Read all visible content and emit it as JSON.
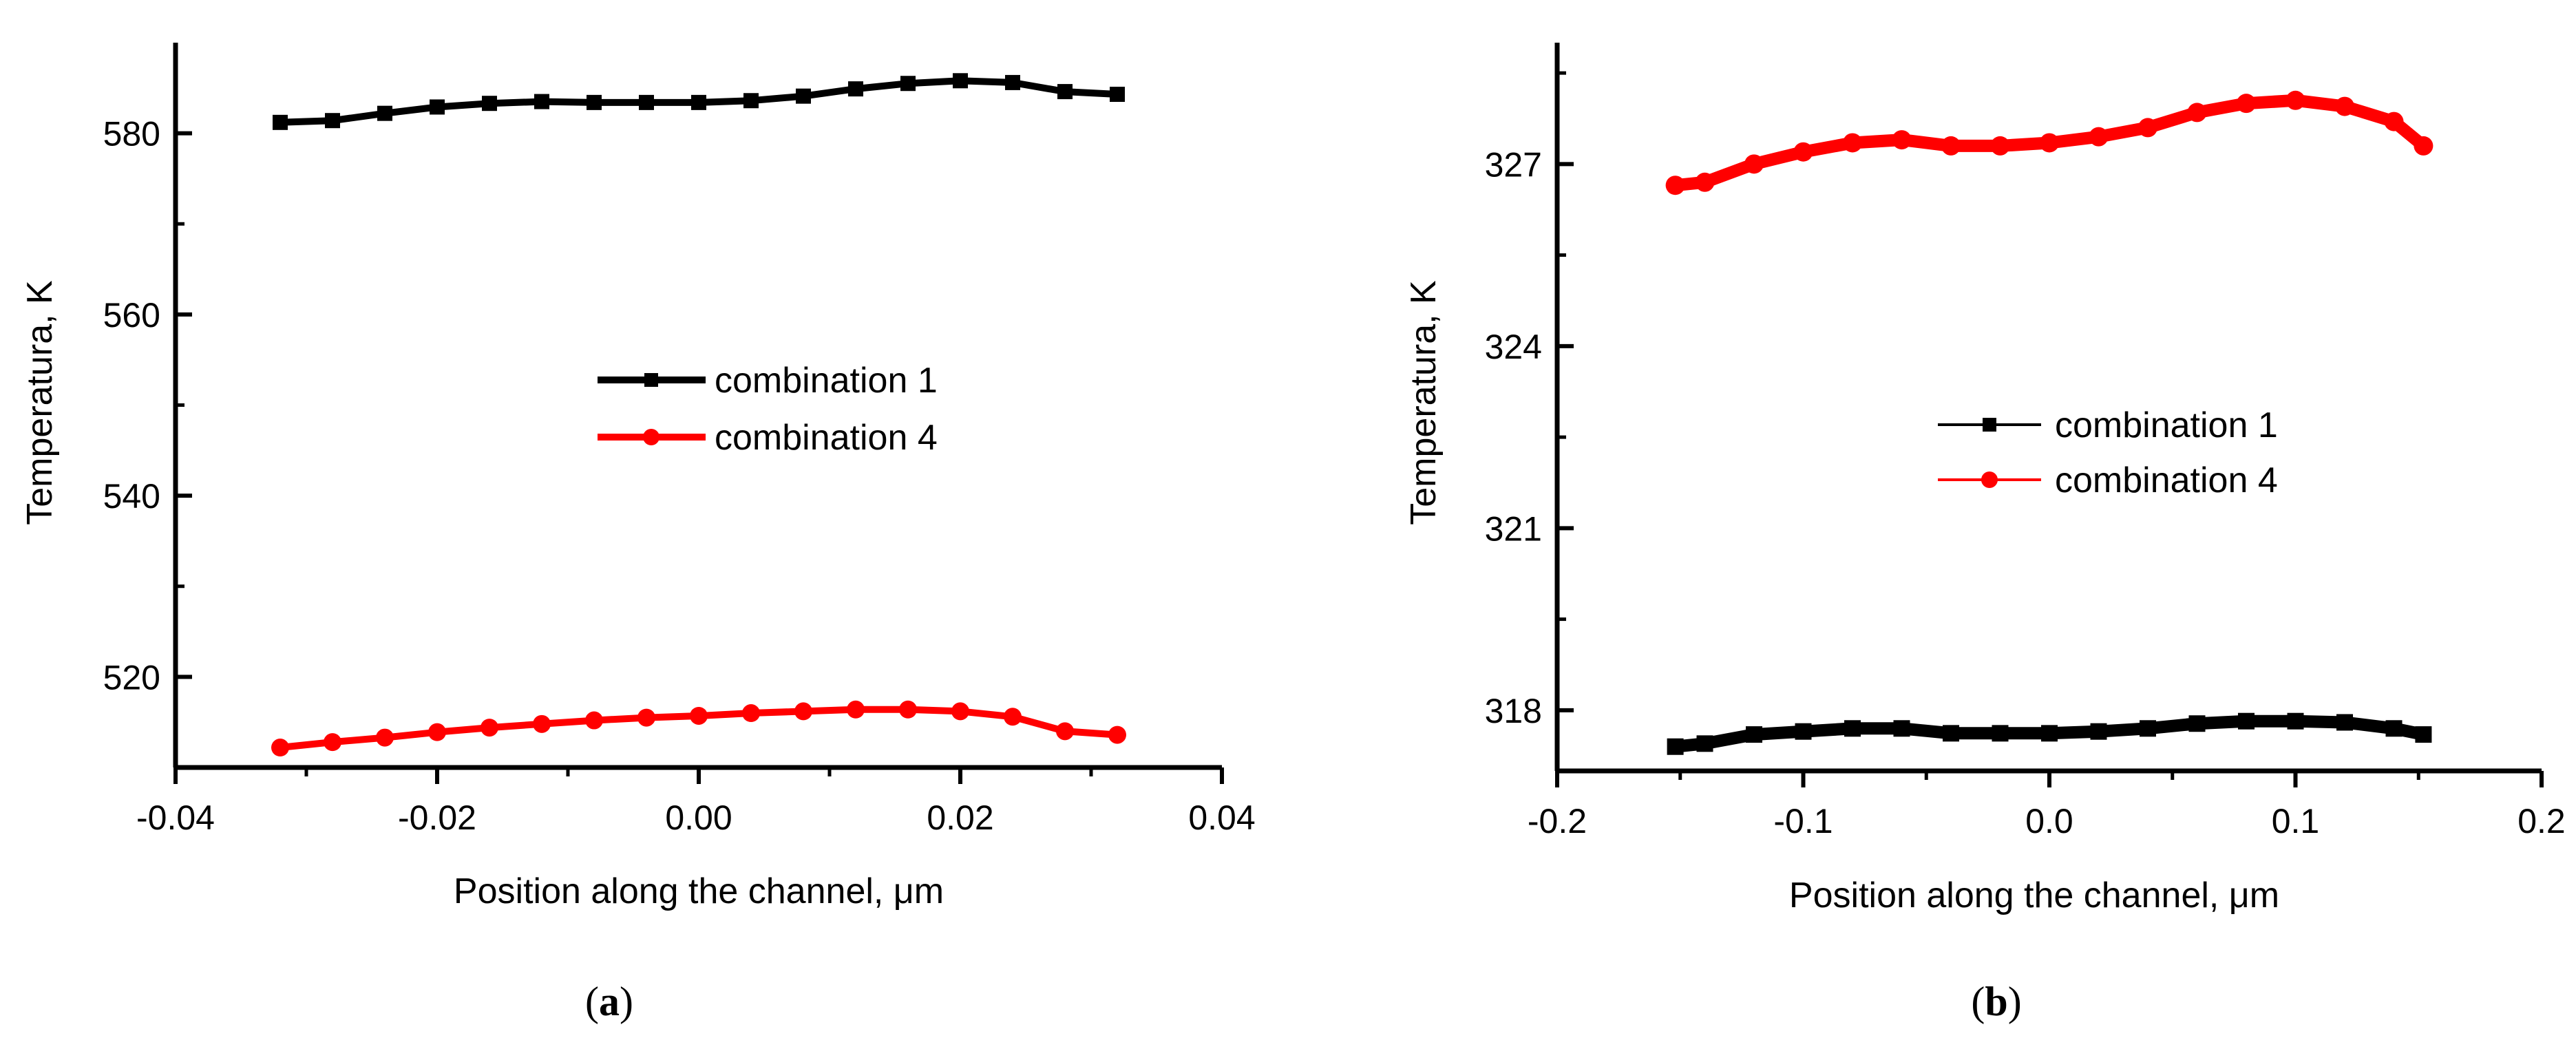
{
  "chart_data": [
    {
      "type": "line",
      "panel_label_open": "(",
      "panel_label_letter": "a",
      "panel_label_close": ")",
      "xlabel": "Position along the channel, μm",
      "ylabel": "Temperatura, K",
      "xlim": [
        -0.04,
        0.04
      ],
      "ylim": [
        510,
        590
      ],
      "xticks": [
        -0.04,
        -0.02,
        0.0,
        0.02,
        0.04
      ],
      "xtick_labels": [
        "-0.04",
        "-0.02",
        "0.00",
        "0.02",
        "0.04"
      ],
      "yticks": [
        520,
        540,
        560,
        580
      ],
      "ytick_labels": [
        "520",
        "540",
        "560",
        "580"
      ],
      "legend_position": "center",
      "series": [
        {
          "name": "combination 1",
          "color": "#000000",
          "marker": "square",
          "x": [
            -0.032,
            -0.028,
            -0.024,
            -0.02,
            -0.016,
            -0.012,
            -0.008,
            -0.004,
            0.0,
            0.004,
            0.008,
            0.012,
            0.016,
            0.02,
            0.024,
            0.028,
            0.032
          ],
          "y": [
            581.2,
            581.4,
            582.2,
            582.9,
            583.3,
            583.5,
            583.4,
            583.4,
            583.4,
            583.6,
            584.1,
            584.9,
            585.5,
            585.8,
            585.6,
            584.6,
            584.3
          ]
        },
        {
          "name": "combination 4",
          "color": "#ff0000",
          "marker": "circle",
          "x": [
            -0.032,
            -0.028,
            -0.024,
            -0.02,
            -0.016,
            -0.012,
            -0.008,
            -0.004,
            0.0,
            0.004,
            0.008,
            0.012,
            0.016,
            0.02,
            0.024,
            0.028,
            0.032
          ],
          "y": [
            512.2,
            512.8,
            513.3,
            513.9,
            514.4,
            514.8,
            515.2,
            515.5,
            515.7,
            516.0,
            516.2,
            516.4,
            516.4,
            516.2,
            515.6,
            514.0,
            513.6
          ]
        }
      ]
    },
    {
      "type": "line",
      "panel_label_open": "(",
      "panel_label_letter": "b",
      "panel_label_close": ")",
      "xlabel": "Position along the channel, μm",
      "ylabel": "Temperatura, K",
      "xlim": [
        -0.2,
        0.2
      ],
      "ylim": [
        317,
        329
      ],
      "xticks": [
        -0.2,
        -0.1,
        0.0,
        0.1,
        0.2
      ],
      "xtick_labels": [
        "-0.2",
        "-0.1",
        "0.0",
        "0.1",
        "0.2"
      ],
      "yticks": [
        318,
        321,
        324,
        327
      ],
      "ytick_labels": [
        "318",
        "321",
        "324",
        "327"
      ],
      "legend_position": "center",
      "series": [
        {
          "name": "combination 1",
          "color": "#000000",
          "marker": "square",
          "x": [
            -0.152,
            -0.14,
            -0.12,
            -0.1,
            -0.08,
            -0.06,
            -0.04,
            -0.02,
            0.0,
            0.02,
            0.04,
            0.06,
            0.08,
            0.1,
            0.12,
            0.14,
            0.152
          ],
          "y": [
            317.4,
            317.45,
            317.6,
            317.65,
            317.7,
            317.7,
            317.62,
            317.62,
            317.62,
            317.65,
            317.7,
            317.78,
            317.82,
            317.82,
            317.8,
            317.7,
            317.6
          ]
        },
        {
          "name": "combination 4",
          "color": "#ff0000",
          "marker": "circle",
          "x": [
            -0.152,
            -0.14,
            -0.12,
            -0.1,
            -0.08,
            -0.06,
            -0.04,
            -0.02,
            0.0,
            0.02,
            0.04,
            0.06,
            0.08,
            0.1,
            0.12,
            0.14,
            0.152
          ],
          "y": [
            326.65,
            326.7,
            327.0,
            327.2,
            327.35,
            327.4,
            327.3,
            327.3,
            327.35,
            327.45,
            327.6,
            327.85,
            328.0,
            328.05,
            327.95,
            327.7,
            327.3
          ]
        }
      ]
    }
  ]
}
